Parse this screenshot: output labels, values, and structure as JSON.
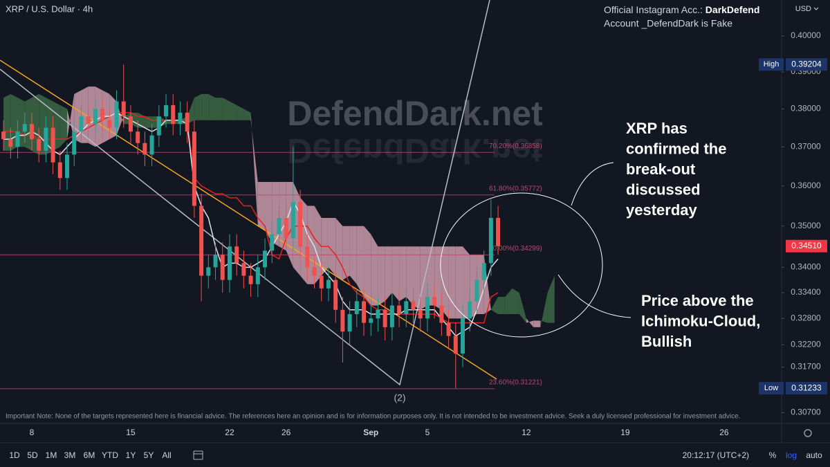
{
  "chart_data": {
    "type": "candlestick",
    "title": "XRP / U.S. Dollar · 4h",
    "currency": "USD",
    "log_scale": true,
    "grid": false,
    "ylim": [
      0.3047,
      0.4102
    ],
    "yticks": [
      {
        "value": 0.4,
        "label": "0.40000"
      },
      {
        "value": 0.39,
        "label": "0.39000"
      },
      {
        "value": 0.38,
        "label": "0.38000"
      },
      {
        "value": 0.37,
        "label": "0.37000"
      },
      {
        "value": 0.36,
        "label": "0.36000"
      },
      {
        "value": 0.35,
        "label": "0.35000"
      },
      {
        "value": 0.34,
        "label": "0.34000"
      },
      {
        "value": 0.334,
        "label": "0.33400"
      },
      {
        "value": 0.328,
        "label": "0.32800"
      },
      {
        "value": 0.322,
        "label": "0.32200"
      },
      {
        "value": 0.317,
        "label": "0.31700"
      },
      {
        "value": 0.307,
        "label": "0.30700"
      }
    ],
    "categories": [
      null,
      null,
      null,
      null,
      "8",
      null,
      null,
      null,
      null,
      null,
      null,
      null,
      null,
      null,
      null,
      null,
      null,
      null,
      "15",
      null,
      null,
      null,
      null,
      null,
      null,
      null,
      null,
      null,
      null,
      null,
      null,
      null,
      "22",
      null,
      null,
      null,
      null,
      null,
      null,
      null,
      "26",
      null,
      null,
      null,
      null,
      null,
      null,
      null,
      null,
      null,
      null,
      null,
      "Sep",
      null,
      null,
      null,
      null,
      null,
      null,
      null,
      "5",
      null,
      null,
      null,
      null,
      null,
      null,
      null,
      null,
      null,
      null,
      null,
      null,
      null,
      "12",
      null,
      null,
      null,
      null,
      null,
      null,
      null,
      null,
      null,
      null,
      null,
      null,
      null,
      "19",
      null,
      null,
      null,
      null,
      null,
      null,
      null,
      null,
      null,
      null,
      null,
      null,
      null,
      "26",
      null,
      null,
      null,
      null,
      null,
      null,
      null
    ],
    "open": [
      0.374,
      0.372,
      0.37,
      0.374,
      0.376,
      0.372,
      0.369,
      0.375,
      0.366,
      0.362,
      0.368,
      0.374,
      0.378,
      0.376,
      0.38,
      0.377,
      0.375,
      0.382,
      0.378,
      0.374,
      0.371,
      0.368,
      0.373,
      0.378,
      0.381,
      0.376,
      0.379,
      0.374,
      0.355,
      0.338,
      0.34,
      0.343,
      0.337,
      0.345,
      0.341,
      0.338,
      0.336,
      0.34,
      0.344,
      0.348,
      0.352,
      0.347,
      0.356,
      0.345,
      0.34,
      0.338,
      0.335,
      0.337,
      0.33,
      0.325,
      0.329,
      0.332,
      0.327,
      0.328,
      0.33,
      0.326,
      0.331,
      0.329,
      0.332,
      0.33,
      0.328,
      0.333,
      0.331,
      0.327,
      0.324,
      0.32,
      0.328,
      0.332,
      0.337,
      0.341,
      0.352,
      null,
      null,
      null,
      null,
      null,
      null,
      null,
      null,
      null,
      null,
      null,
      null,
      null,
      null,
      null,
      null,
      null,
      null,
      null,
      null,
      null,
      null,
      null,
      null,
      null,
      null,
      null,
      null,
      null,
      null,
      null,
      null,
      null,
      null,
      null,
      null,
      null,
      null,
      null
    ],
    "high": [
      0.377,
      0.375,
      0.377,
      0.379,
      0.379,
      0.375,
      0.378,
      0.378,
      0.369,
      0.371,
      0.377,
      0.381,
      0.381,
      0.383,
      0.383,
      0.38,
      0.385,
      0.39204,
      0.381,
      0.377,
      0.374,
      0.376,
      0.381,
      0.384,
      0.384,
      0.382,
      0.382,
      0.377,
      0.358,
      0.343,
      0.346,
      0.346,
      0.348,
      0.348,
      0.344,
      0.341,
      0.343,
      0.347,
      0.351,
      0.355,
      0.355,
      0.37,
      0.359,
      0.348,
      0.343,
      0.341,
      0.34,
      0.34,
      0.333,
      0.332,
      0.335,
      0.335,
      0.331,
      0.333,
      0.333,
      0.334,
      0.334,
      0.335,
      0.335,
      0.333,
      0.336,
      0.336,
      0.334,
      0.33,
      0.327,
      0.331,
      0.335,
      0.34,
      0.344,
      0.3565,
      0.355,
      null,
      null,
      null,
      null,
      null,
      null,
      null,
      null,
      null,
      null,
      null,
      null,
      null,
      null,
      null,
      null,
      null,
      null,
      null,
      null,
      null,
      null,
      null,
      null,
      null,
      null,
      null,
      null,
      null,
      null,
      null,
      null,
      null,
      null,
      null,
      null,
      null,
      null,
      null
    ],
    "low": [
      0.369,
      0.367,
      0.367,
      0.371,
      0.369,
      0.366,
      0.366,
      0.363,
      0.359,
      0.359,
      0.365,
      0.371,
      0.373,
      0.373,
      0.374,
      0.372,
      0.372,
      0.375,
      0.371,
      0.368,
      0.365,
      0.365,
      0.37,
      0.375,
      0.373,
      0.373,
      0.371,
      0.352,
      0.332,
      0.335,
      0.337,
      0.334,
      0.334,
      0.338,
      0.335,
      0.333,
      0.333,
      0.337,
      0.341,
      0.345,
      0.344,
      0.344,
      0.342,
      0.337,
      0.335,
      0.332,
      0.332,
      0.327,
      0.318,
      0.322,
      0.326,
      0.324,
      0.324,
      0.325,
      0.323,
      0.323,
      0.326,
      0.326,
      0.327,
      0.325,
      0.325,
      0.328,
      0.324,
      0.321,
      0.31233,
      0.317,
      0.325,
      0.329,
      0.334,
      0.338,
      0.343,
      null,
      null,
      null,
      null,
      null,
      null,
      null,
      null,
      null,
      null,
      null,
      null,
      null,
      null,
      null,
      null,
      null,
      null,
      null,
      null,
      null,
      null,
      null,
      null,
      null,
      null,
      null,
      null,
      null,
      null,
      null,
      null,
      null,
      null,
      null,
      null,
      null,
      null,
      null
    ],
    "close": [
      0.372,
      0.37,
      0.374,
      0.376,
      0.372,
      0.369,
      0.375,
      0.366,
      0.362,
      0.368,
      0.374,
      0.378,
      0.376,
      0.38,
      0.377,
      0.375,
      0.382,
      0.378,
      0.374,
      0.371,
      0.368,
      0.373,
      0.378,
      0.381,
      0.376,
      0.379,
      0.374,
      0.355,
      0.338,
      0.34,
      0.343,
      0.337,
      0.345,
      0.341,
      0.338,
      0.336,
      0.34,
      0.344,
      0.348,
      0.352,
      0.347,
      0.356,
      0.345,
      0.34,
      0.338,
      0.335,
      0.337,
      0.33,
      0.325,
      0.329,
      0.332,
      0.327,
      0.328,
      0.33,
      0.326,
      0.331,
      0.329,
      0.332,
      0.33,
      0.328,
      0.333,
      0.331,
      0.327,
      0.324,
      0.32,
      0.328,
      0.332,
      0.337,
      0.341,
      0.352,
      0.3451,
      null,
      null,
      null,
      null,
      null,
      null,
      null,
      null,
      null,
      null,
      null,
      null,
      null,
      null,
      null,
      null,
      null,
      null,
      null,
      null,
      null,
      null,
      null,
      null,
      null,
      null,
      null,
      null,
      null,
      null,
      null,
      null,
      null,
      null,
      null,
      null,
      null,
      null,
      null
    ],
    "tenkan": [
      0.372,
      0.372,
      0.373,
      0.373,
      0.374,
      0.373,
      0.371,
      0.369,
      0.368,
      0.37,
      0.372,
      0.374,
      0.376,
      0.377,
      0.378,
      0.378,
      0.379,
      0.378,
      0.377,
      0.376,
      0.375,
      0.374,
      0.375,
      0.377,
      0.377,
      0.377,
      0.376,
      0.36,
      0.355,
      0.352,
      0.345,
      0.34,
      0.341,
      0.341,
      0.34,
      0.34,
      0.341,
      0.342,
      0.345,
      0.348,
      0.351,
      0.356,
      0.353,
      0.348,
      0.345,
      0.34,
      0.338,
      0.336,
      0.332,
      0.33,
      0.33,
      0.33,
      0.329,
      0.329,
      0.329,
      0.329,
      0.329,
      0.33,
      0.33,
      0.33,
      0.33,
      0.33,
      0.328,
      0.326,
      0.324,
      0.325,
      0.326,
      0.33,
      0.335,
      0.34,
      0.342,
      null,
      null,
      null,
      null,
      null,
      null,
      null,
      null,
      null,
      null,
      null,
      null,
      null,
      null,
      null,
      null,
      null,
      null,
      null,
      null,
      null,
      null,
      null,
      null,
      null,
      null,
      null,
      null,
      null,
      null,
      null,
      null,
      null,
      null,
      null,
      null,
      null,
      null,
      null
    ],
    "kijun": [
      0.374,
      0.374,
      0.374,
      0.373,
      0.373,
      0.372,
      0.372,
      0.372,
      0.372,
      0.372,
      0.373,
      0.374,
      0.375,
      0.376,
      0.377,
      0.378,
      0.379,
      0.379,
      0.379,
      0.378,
      0.378,
      0.377,
      0.377,
      0.377,
      0.377,
      0.377,
      0.377,
      0.362,
      0.36,
      0.359,
      0.358,
      0.358,
      0.357,
      0.357,
      0.355,
      0.355,
      0.352,
      0.35,
      0.343,
      0.342,
      0.347,
      0.35,
      0.35,
      0.35,
      0.347,
      0.345,
      0.345,
      0.343,
      0.34,
      0.336,
      0.334,
      0.333,
      0.331,
      0.33,
      0.33,
      0.329,
      0.329,
      0.329,
      0.329,
      0.329,
      0.329,
      0.329,
      0.328,
      0.327,
      0.327,
      0.327,
      0.327,
      0.327,
      0.327,
      0.333,
      0.334,
      null,
      null,
      null,
      null,
      null,
      null,
      null,
      null,
      null,
      null,
      null,
      null,
      null,
      null,
      null,
      null,
      null,
      null,
      null,
      null,
      null,
      null,
      null,
      null,
      null,
      null,
      null,
      null,
      null,
      null,
      null,
      null,
      null,
      null,
      null,
      null,
      null,
      null,
      null
    ],
    "span_a": [
      0.383,
      0.384,
      0.383,
      0.382,
      0.383,
      0.384,
      0.383,
      0.382,
      0.381,
      0.38,
      0.372,
      0.371,
      0.371,
      0.37,
      0.371,
      0.372,
      0.373,
      0.378,
      0.379,
      0.379,
      0.378,
      0.378,
      0.378,
      0.377,
      0.377,
      0.377,
      0.378,
      0.383,
      0.384,
      0.384,
      0.383,
      0.383,
      0.382,
      0.381,
      0.38,
      0.379,
      0.35,
      0.349,
      0.346,
      0.345,
      0.344,
      0.34,
      0.338,
      0.336,
      0.336,
      0.338,
      0.34,
      0.338,
      0.337,
      0.338,
      0.336,
      0.333,
      0.331,
      0.331,
      0.332,
      0.334,
      0.332,
      0.333,
      0.331,
      0.33,
      0.331,
      0.331,
      0.33,
      0.328,
      0.328,
      0.328,
      0.328,
      0.329,
      0.329,
      0.33,
      0.333,
      0.333,
      0.335,
      0.334,
      0.328,
      0.326,
      0.326,
      0.334,
      0.338,
      null,
      null,
      null,
      null,
      null,
      null,
      null,
      null,
      null,
      null,
      null,
      null,
      null,
      null,
      null,
      null,
      null,
      null,
      null,
      null,
      null,
      null,
      null,
      null,
      null,
      null,
      null,
      null,
      null,
      null,
      null
    ],
    "span_b": [
      0.369,
      0.369,
      0.37,
      0.37,
      0.369,
      0.368,
      0.368,
      0.369,
      0.37,
      0.372,
      0.384,
      0.385,
      0.386,
      0.386,
      0.385,
      0.384,
      0.382,
      0.376,
      0.376,
      0.375,
      0.375,
      0.375,
      0.375,
      0.376,
      0.376,
      0.376,
      0.376,
      0.377,
      0.377,
      0.377,
      0.377,
      0.377,
      0.377,
      0.377,
      0.377,
      0.377,
      0.361,
      0.361,
      0.361,
      0.361,
      0.361,
      0.361,
      0.357,
      0.355,
      0.355,
      0.352,
      0.352,
      0.352,
      0.35,
      0.35,
      0.35,
      0.35,
      0.348,
      0.345,
      0.345,
      0.345,
      0.345,
      0.345,
      0.345,
      0.345,
      0.345,
      0.345,
      0.345,
      0.345,
      0.345,
      0.345,
      0.343,
      0.343,
      0.343,
      0.33,
      0.329,
      0.329,
      0.329,
      0.329,
      0.327,
      0.3275,
      0.3275,
      0.327,
      0.327,
      null,
      null,
      null,
      null,
      null,
      null,
      null,
      null,
      null,
      null,
      null,
      null,
      null,
      null,
      null,
      null,
      null,
      null,
      null,
      null,
      null,
      null,
      null,
      null,
      null,
      null,
      null,
      null,
      null,
      null,
      null
    ],
    "up_color": "#26a69a",
    "down_color": "#ef5350",
    "tenkan_color": "#dfe2ea",
    "kijun_color": "#e8201e",
    "cloud_up_color": "#3f6e48",
    "cloud_down_color": "#d8a3b4",
    "fib_levels": [
      {
        "value": 0.36858,
        "label": "70.20%(0.36858)"
      },
      {
        "value": 0.35772,
        "label": "61.80%(0.35772)"
      },
      {
        "value": 0.34299,
        "label": "50.00%(0.34299)"
      },
      {
        "value": 0.31221,
        "label": "23.60%(0.31221)"
      }
    ],
    "fib_color": "#c2456e",
    "high_marker": {
      "label": "High",
      "value": 0.39204
    },
    "low_marker": {
      "label": "Low",
      "value": 0.31233
    },
    "last_price": {
      "value": 0.3451,
      "value_label": "0.34510"
    },
    "wave_label": "(2)",
    "watermark": "DefendDark.net",
    "annotations": [
      [
        "XRP has",
        "confirmed the",
        "break-out",
        "discussed",
        "yesterday"
      ],
      [
        "Price above the",
        "Ichimoku-Cloud,",
        "Bullish"
      ]
    ],
    "note": "Important Note: None of the targets represented here is financial advice. The references here an opinion and is for information purposes only. It is not intended to be investment advice. Seek a duly licensed professional for investment advice."
  },
  "ui": {
    "instagram": {
      "prefix": "Official Instagram Acc.: ",
      "handle": "DarkDefend",
      "warning": "Account _DefendDark is Fake"
    },
    "ranges": [
      "1D",
      "5D",
      "1M",
      "3M",
      "6M",
      "YTD",
      "1Y",
      "5Y",
      "All"
    ],
    "clock": "20:12:17 (UTC+2)",
    "percent": "%",
    "log": "log",
    "auto": "auto"
  }
}
